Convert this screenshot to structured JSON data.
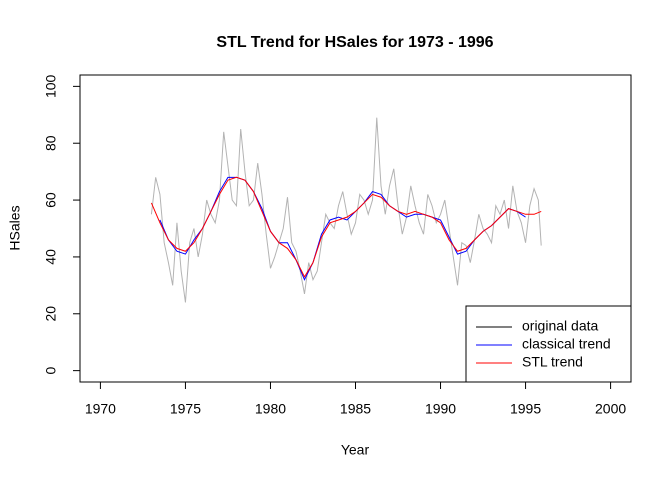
{
  "chart_data": {
    "type": "line",
    "title": "STL Trend for HSales for 1973 - 1996",
    "x_label": "Year",
    "y_label": "HSales",
    "xlim": [
      1968.8,
      2001.2
    ],
    "xticks": [
      1970,
      1975,
      1980,
      1985,
      1990,
      1995,
      2000
    ],
    "ylim": [
      -4,
      104
    ],
    "yticks": [
      0,
      20,
      40,
      60,
      80,
      100
    ],
    "legend": "bottomright",
    "series": [
      {
        "name": "original data",
        "color": "#b3b3b3",
        "legend_color": "#000000",
        "x": [
          1973,
          1973.25,
          1973.5,
          1973.75,
          1974,
          1974.25,
          1974.5,
          1974.75,
          1975,
          1975.25,
          1975.5,
          1975.75,
          1976,
          1976.25,
          1976.5,
          1976.75,
          1977,
          1977.25,
          1977.5,
          1977.75,
          1978,
          1978.25,
          1978.5,
          1978.75,
          1979,
          1979.25,
          1979.5,
          1979.75,
          1980,
          1980.25,
          1980.5,
          1980.75,
          1981,
          1981.25,
          1981.5,
          1981.75,
          1982,
          1982.25,
          1982.5,
          1982.75,
          1983,
          1983.25,
          1983.5,
          1983.75,
          1984,
          1984.25,
          1984.5,
          1984.75,
          1985,
          1985.25,
          1985.5,
          1985.75,
          1986,
          1986.25,
          1986.5,
          1986.75,
          1987,
          1987.25,
          1987.5,
          1987.75,
          1988,
          1988.25,
          1988.5,
          1988.75,
          1989,
          1989.25,
          1989.5,
          1989.75,
          1990,
          1990.25,
          1990.5,
          1990.75,
          1991,
          1991.25,
          1991.5,
          1991.75,
          1992,
          1992.25,
          1992.5,
          1992.75,
          1993,
          1993.25,
          1993.5,
          1993.75,
          1994,
          1994.25,
          1994.5,
          1994.75,
          1995,
          1995.25,
          1995.5,
          1995.75,
          1995.92
        ],
        "values": [
          55,
          68,
          62,
          45,
          38,
          30,
          52,
          35,
          24,
          45,
          50,
          40,
          48,
          60,
          55,
          52,
          60,
          84,
          72,
          60,
          58,
          85,
          70,
          58,
          60,
          73,
          62,
          48,
          36,
          40,
          45,
          50,
          61,
          45,
          42,
          35,
          27,
          38,
          32,
          35,
          45,
          55,
          52,
          50,
          58,
          63,
          55,
          48,
          52,
          62,
          60,
          55,
          60,
          89,
          65,
          55,
          65,
          71,
          58,
          48,
          54,
          65,
          58,
          52,
          48,
          62,
          58,
          52,
          55,
          60,
          50,
          40,
          30,
          45,
          44,
          38,
          46,
          55,
          50,
          48,
          45,
          58,
          55,
          60,
          50,
          65,
          56,
          52,
          45,
          58,
          64,
          60,
          44
        ]
      },
      {
        "name": "classical trend",
        "color": "#0000ff",
        "x": [
          1973.5,
          1974,
          1974.5,
          1975,
          1975.5,
          1976,
          1976.5,
          1977,
          1977.5,
          1978,
          1978.5,
          1979,
          1979.5,
          1980,
          1980.5,
          1981,
          1981.5,
          1982,
          1982.5,
          1983,
          1983.5,
          1984,
          1984.5,
          1985,
          1985.5,
          1986,
          1986.5,
          1987,
          1987.5,
          1988,
          1988.5,
          1989,
          1989.5,
          1990,
          1990.5,
          1991,
          1991.5,
          1992,
          1992.5,
          1993,
          1993.5,
          1994,
          1994.5,
          1995
        ],
        "values": [
          53,
          46,
          42,
          41,
          46,
          50,
          56,
          63,
          68,
          68,
          67,
          63,
          57,
          49,
          45,
          45,
          39,
          32,
          38,
          48,
          53,
          54,
          53,
          56,
          59,
          63,
          62,
          58,
          56,
          54,
          55,
          55,
          54,
          53,
          47,
          41,
          42,
          46,
          49,
          51,
          54,
          57,
          56,
          54
        ]
      },
      {
        "name": "STL trend",
        "color": "#ff0000",
        "x": [
          1973,
          1973.5,
          1974,
          1974.5,
          1975,
          1975.5,
          1976,
          1976.5,
          1977,
          1977.5,
          1978,
          1978.5,
          1979,
          1979.5,
          1980,
          1980.5,
          1981,
          1981.5,
          1982,
          1982.5,
          1983,
          1983.5,
          1984,
          1984.5,
          1985,
          1985.5,
          1986,
          1986.5,
          1987,
          1987.5,
          1988,
          1988.5,
          1989,
          1989.5,
          1990,
          1990.5,
          1991,
          1991.5,
          1992,
          1992.5,
          1993,
          1993.5,
          1994,
          1994.5,
          1995,
          1995.5,
          1995.92
        ],
        "values": [
          59,
          52,
          46,
          43,
          42,
          45,
          50,
          56,
          62,
          67,
          68,
          67,
          63,
          56,
          49,
          45,
          43,
          39,
          33,
          38,
          47,
          52,
          53,
          54,
          56,
          59,
          62,
          61,
          58,
          56,
          55,
          56,
          55,
          54,
          52,
          46,
          42,
          43,
          46,
          49,
          51,
          54,
          57,
          56,
          55,
          55,
          56
        ]
      }
    ]
  }
}
